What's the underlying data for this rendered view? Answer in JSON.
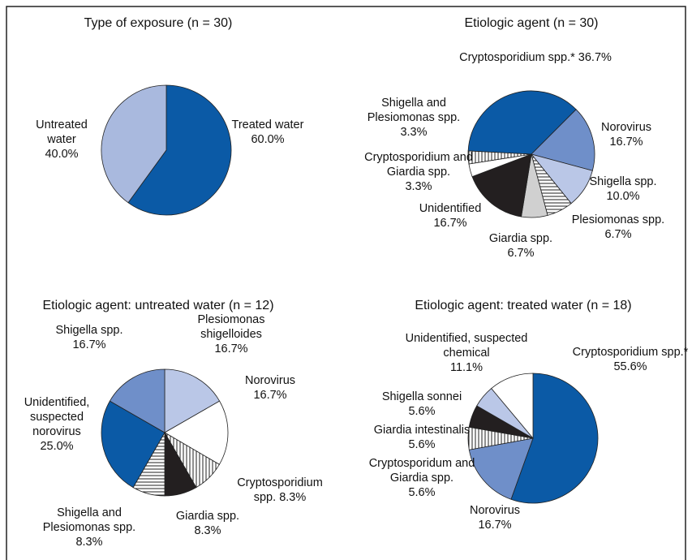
{
  "chart_data": [
    {
      "type": "pie",
      "title": "Type of exposure (n = 30)",
      "categories": [
        "Treated water",
        "Untreated water"
      ],
      "values": [
        60.0,
        40.0
      ],
      "value_labels": [
        "60.0%",
        "40.0%"
      ],
      "colors": [
        "#0b5aa6",
        "#a9b9de"
      ]
    },
    {
      "type": "pie",
      "title": "Etiologic agent (n = 30)",
      "categories": [
        "Cryptosporidium spp.*",
        "Norovirus",
        "Shigella spp.",
        "Plesiomonas spp.",
        "Giardia spp.",
        "Unidentified",
        "Cryptosporidium and Giardia spp.",
        "Shigella and Plesiomonas spp."
      ],
      "values": [
        36.7,
        16.7,
        10.0,
        6.7,
        6.7,
        16.7,
        3.3,
        3.3
      ],
      "value_labels": [
        "36.7%",
        "16.7%",
        "10.0%",
        "6.7%",
        "6.7%",
        "16.7%",
        "3.3%",
        "3.3%"
      ],
      "colors": [
        "#0b5aa6",
        "#6f8fc9",
        "#bac7e7",
        "hatch-horizontal",
        "#d0d0d0",
        "#231f20",
        "#ffffff",
        "hatch-vertical"
      ]
    },
    {
      "type": "pie",
      "title": "Etiologic agent: untreated water (n = 12)",
      "categories": [
        "Plesiomonas shigelloides",
        "Norovirus",
        "Cryptosporidium spp.",
        "Giardia spp.",
        "Shigella and Plesiomonas spp.",
        "Unidentified, suspected norovirus",
        "Shigella spp."
      ],
      "values": [
        16.7,
        16.7,
        8.3,
        8.3,
        8.3,
        25.0,
        16.7
      ],
      "value_labels": [
        "16.7%",
        "16.7%",
        "8.3%",
        "8.3%",
        "8.3%",
        "25.0%",
        "16.7%"
      ],
      "colors": [
        "#bac7e7",
        "#ffffff",
        "hatch-vertical",
        "#231f20",
        "hatch-horizontal",
        "#0b5aa6",
        "#6f8fc9"
      ]
    },
    {
      "type": "pie",
      "title": "Etiologic agent: treated water (n = 18)",
      "categories": [
        "Cryptosporidium spp.*",
        "Norovirus",
        "Cryptosporidum and Giardia spp.",
        "Giardia intestinalis",
        "Shigella sonnei",
        "Unidentified, suspected chemical"
      ],
      "values": [
        55.6,
        16.7,
        5.6,
        5.6,
        5.6,
        11.1
      ],
      "value_labels": [
        "55.6%",
        "16.7%",
        "5.6%",
        "5.6%",
        "5.6%",
        "11.1%"
      ],
      "colors": [
        "#0b5aa6",
        "#6f8fc9",
        "hatch-vertical",
        "#231f20",
        "#bac7e7",
        "#ffffff"
      ]
    }
  ]
}
